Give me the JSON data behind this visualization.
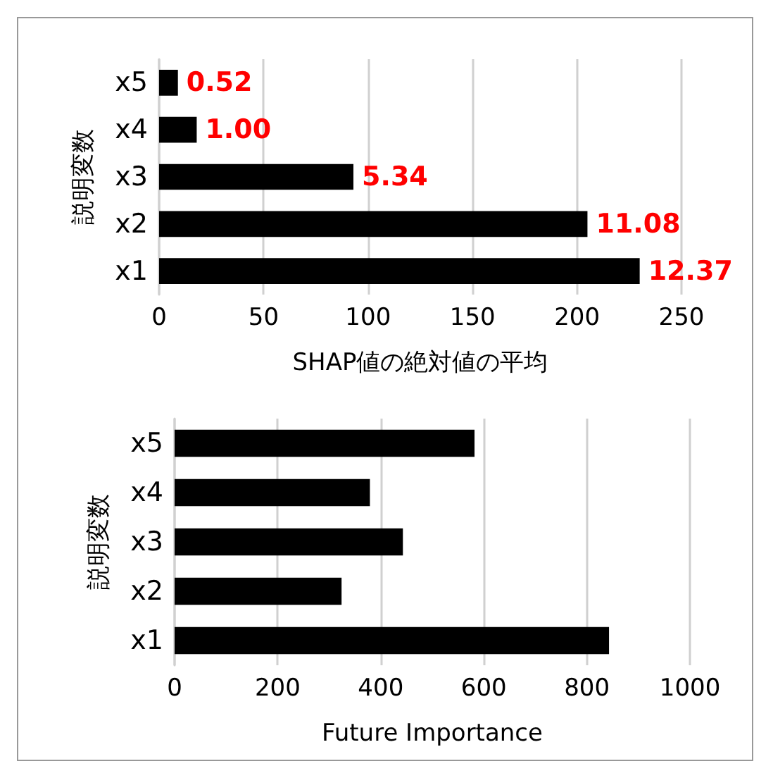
{
  "chart_data": [
    {
      "type": "bar",
      "orientation": "horizontal",
      "xlabel": "SHAP値の絶対値の平均",
      "ylabel": "説明変数",
      "categories": [
        "x5",
        "x4",
        "x3",
        "x2",
        "x1"
      ],
      "values": [
        9,
        18,
        93,
        205,
        230
      ],
      "color": "#000000",
      "annotations": [
        {
          "text": "0.52",
          "x": 9,
          "y": "x5"
        },
        {
          "text": "1.00",
          "x": 18,
          "y": "x4"
        },
        {
          "text": "5.34",
          "x": 93,
          "y": "x3"
        },
        {
          "text": "11.08",
          "x": 205,
          "y": "x2"
        },
        {
          "text": "12.37",
          "x": 230,
          "y": "x1"
        }
      ],
      "xlim": [
        0,
        250
      ],
      "xticks": [
        0,
        50,
        100,
        150,
        200,
        250
      ],
      "grid": "x"
    },
    {
      "type": "bar",
      "orientation": "horizontal",
      "xlabel": "Future Importance",
      "ylabel": "説明変数",
      "categories": [
        "x5",
        "x4",
        "x3",
        "x2",
        "x1"
      ],
      "values": [
        582,
        379,
        443,
        324,
        843
      ],
      "color": "#000000",
      "xlim": [
        0,
        1000
      ],
      "xticks": [
        0,
        200,
        400,
        600,
        800,
        1000
      ],
      "grid": "x"
    }
  ]
}
